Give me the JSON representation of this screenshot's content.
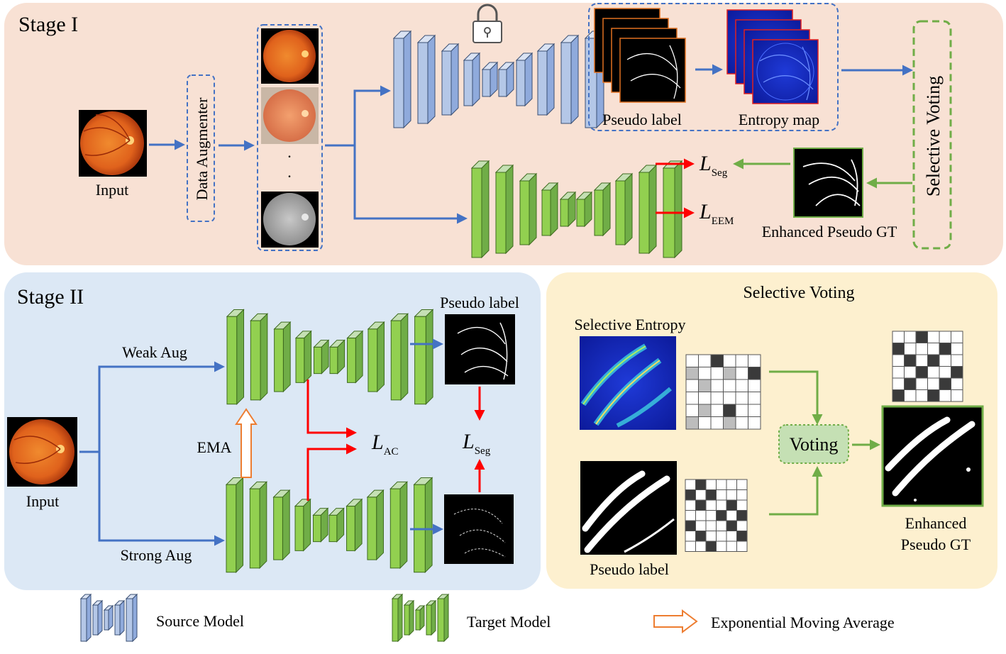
{
  "stage1": {
    "title": "Stage I",
    "input_label": "Input",
    "augmenter_label": "Data Augmenter",
    "pseudo_label": "Pseudo label",
    "entropy_map": "Entropy map",
    "selective_voting": "Selective Voting",
    "enhanced_gt": "Enhanced Pseudo GT",
    "loss_seg": {
      "main": "L",
      "sub": "Seg"
    },
    "loss_eem": {
      "main": "L",
      "sub": "EEM"
    }
  },
  "stage2": {
    "title": "Stage II",
    "input_label": "Input",
    "weak_aug": "Weak Aug",
    "strong_aug": "Strong Aug",
    "ema": "EMA",
    "pseudo_label": "Pseudo label",
    "loss_ac": {
      "main": "L",
      "sub": "AC"
    },
    "loss_seg": {
      "main": "L",
      "sub": "Seg"
    }
  },
  "voting_panel": {
    "title": "Selective Voting",
    "selective_entropy": "Selective Entropy",
    "pseudo_label": "Pseudo label",
    "voting": "Voting",
    "enhanced_line1": "Enhanced",
    "enhanced_line2": "Pseudo GT"
  },
  "legend": {
    "source": "Source Model",
    "target": "Target Model",
    "ema": "Exponential Moving Average"
  },
  "colors": {
    "stage1_bg": "#f8e1d4",
    "stage2_bg": "#dce8f5",
    "voting_bg": "#fdf0cf",
    "arrow_blue": "#4472c4",
    "arrow_red": "#ff0000",
    "arrow_green": "#70ad47",
    "source_model": "#a9bcd9",
    "target_model": "#8fcd4f",
    "ema_orange": "#ed7d31"
  },
  "grids": {
    "entropy_grid": [
      [
        0,
        0,
        2,
        0,
        0,
        0
      ],
      [
        1,
        0,
        0,
        1,
        0,
        2
      ],
      [
        0,
        1,
        0,
        0,
        0,
        0
      ],
      [
        0,
        0,
        0,
        0,
        0,
        0
      ],
      [
        0,
        1,
        0,
        2,
        0,
        0
      ],
      [
        1,
        0,
        0,
        1,
        0,
        0
      ]
    ],
    "pseudo_grid": [
      [
        0,
        2,
        0,
        0,
        0,
        0
      ],
      [
        2,
        0,
        2,
        0,
        0,
        0
      ],
      [
        0,
        2,
        0,
        0,
        2,
        0
      ],
      [
        0,
        0,
        0,
        2,
        0,
        2
      ],
      [
        2,
        0,
        0,
        0,
        2,
        0
      ],
      [
        0,
        2,
        0,
        0,
        0,
        2
      ],
      [
        0,
        0,
        2,
        0,
        0,
        0
      ]
    ],
    "voted_grid": [
      [
        0,
        0,
        2,
        0,
        0,
        0
      ],
      [
        2,
        0,
        0,
        0,
        2,
        0
      ],
      [
        0,
        2,
        0,
        2,
        0,
        0
      ],
      [
        0,
        0,
        2,
        0,
        0,
        2
      ],
      [
        0,
        2,
        0,
        0,
        2,
        0
      ],
      [
        2,
        0,
        0,
        2,
        0,
        0
      ]
    ]
  }
}
